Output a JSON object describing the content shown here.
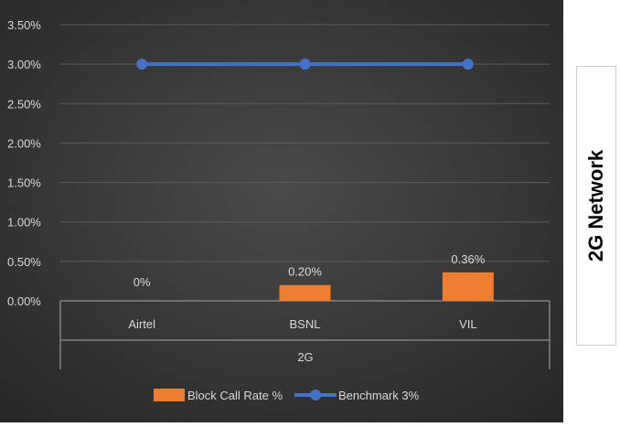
{
  "chart_data": {
    "type": "bar",
    "categories": [
      "Airtel",
      "BSNL",
      "VIL"
    ],
    "group_label": "2G",
    "series": [
      {
        "name": "Block Call Rate %",
        "type": "bar",
        "values": [
          0.0,
          0.2,
          0.36
        ],
        "color": "#ED7D31"
      },
      {
        "name": "Benchmark 3%",
        "type": "line",
        "values": [
          3.0,
          3.0,
          3.0
        ],
        "color": "#4472C4"
      }
    ],
    "data_labels": [
      "0%",
      "0.20%",
      "0.36%"
    ],
    "yticks": [
      {
        "value": 0.0,
        "label": "0.00%"
      },
      {
        "value": 0.5,
        "label": "0.50%"
      },
      {
        "value": 1.0,
        "label": "1.00%"
      },
      {
        "value": 1.5,
        "label": "1.50%"
      },
      {
        "value": 2.0,
        "label": "2.00%"
      },
      {
        "value": 2.5,
        "label": "2.50%"
      },
      {
        "value": 3.0,
        "label": "3.00%"
      },
      {
        "value": 3.5,
        "label": "3.50%"
      }
    ],
    "ylim": [
      0,
      3.5
    ],
    "grid": true,
    "legend_position": "bottom",
    "background": "#3a3a3a"
  },
  "side_label": "2G Network"
}
